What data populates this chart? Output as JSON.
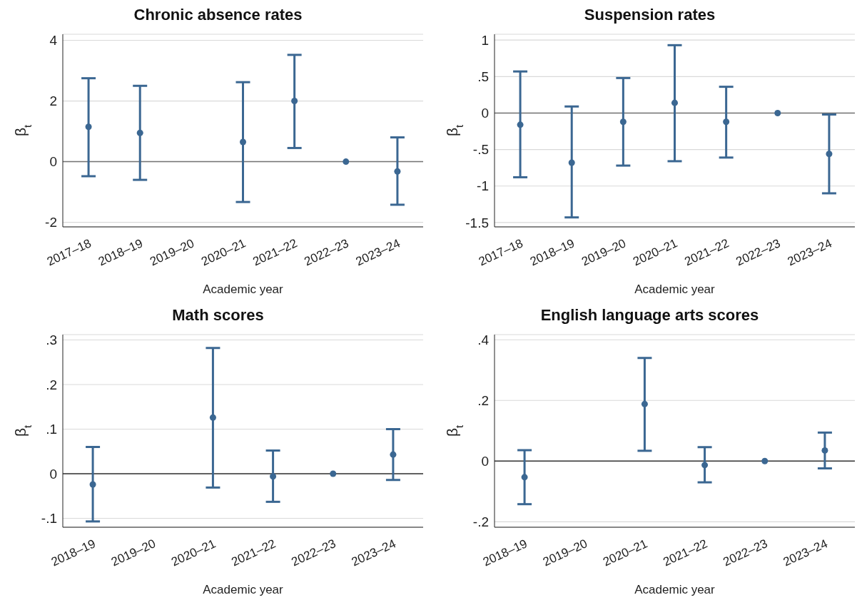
{
  "chart_data": [
    {
      "type": "scatter",
      "title": "Chronic absence rates",
      "xlabel": "Academic year",
      "ylabel": "β$_{t}$",
      "categories": [
        "2017–18",
        "2018–19",
        "2019–20",
        "2020–21",
        "2021–22",
        "2022–23",
        "2023–24"
      ],
      "series": [
        {
          "color": "#3b6792",
          "values": [
            1.15,
            0.95,
            null,
            0.65,
            2.0,
            0,
            -0.32
          ],
          "errors": [
            [
              -0.48,
              2.75
            ],
            [
              -0.6,
              2.5
            ],
            null,
            [
              -1.33,
              2.62
            ],
            [
              0.45,
              3.52
            ],
            null,
            [
              -1.42,
              0.8
            ]
          ]
        }
      ],
      "ylim": [
        -2.15,
        4.2
      ],
      "yticks": [
        -2,
        0,
        2,
        4
      ],
      "grid": "y",
      "marker": "circle",
      "ref_lines": [
        {
          "axis": "y",
          "value": 0,
          "color": "#737373"
        }
      ]
    },
    {
      "type": "scatter",
      "title": "Suspension rates",
      "xlabel": "Academic year",
      "ylabel": "β$_{t}$",
      "categories": [
        "2017–18",
        "2018–19",
        "2019–20",
        "2020–21",
        "2021–22",
        "2022–23",
        "2023–24"
      ],
      "series": [
        {
          "color": "#3b6792",
          "values": [
            -0.16,
            -0.68,
            -0.12,
            0.14,
            -0.12,
            0,
            -0.56
          ],
          "errors": [
            [
              -0.88,
              0.57
            ],
            [
              -1.43,
              0.09
            ],
            [
              -0.72,
              0.48
            ],
            [
              -0.66,
              0.93
            ],
            [
              -0.61,
              0.36
            ],
            null,
            [
              -1.1,
              -0.02
            ]
          ]
        }
      ],
      "ylim": [
        -1.56,
        1.08
      ],
      "yticks": [
        {
          "value": -1.5,
          "label": "-1.5"
        },
        -1,
        {
          "value": -0.5,
          "label": "-.5"
        },
        0,
        {
          "value": 0.5,
          "label": ".5"
        },
        1
      ],
      "grid": "y",
      "marker": "circle",
      "ref_lines": [
        {
          "axis": "y",
          "value": 0,
          "color": "#737373"
        }
      ]
    },
    {
      "type": "scatter",
      "title": "Math scores",
      "xlabel": "Academic year",
      "ylabel": "β$_{t}$",
      "categories": [
        "2018–19",
        "2019–20",
        "2020–21",
        "2021–22",
        "2022–23",
        "2023–24"
      ],
      "series": [
        {
          "color": "#3b6792",
          "values": [
            -0.024,
            null,
            0.126,
            -0.006,
            0,
            0.043
          ],
          "errors": [
            [
              -0.107,
              0.06
            ],
            null,
            [
              -0.031,
              0.282
            ],
            [
              -0.063,
              0.052
            ],
            null,
            [
              -0.014,
              0.1
            ]
          ]
        }
      ],
      "ylim": [
        -0.12,
        0.312
      ],
      "yticks": [
        {
          "value": -0.1,
          "label": "-.1"
        },
        0,
        {
          "value": 0.1,
          "label": ".1"
        },
        {
          "value": 0.2,
          "label": ".2"
        },
        {
          "value": 0.3,
          "label": ".3"
        }
      ],
      "grid": "y",
      "marker": "circle",
      "ref_lines": [
        {
          "axis": "y",
          "value": 0,
          "color": "#333333"
        }
      ]
    },
    {
      "type": "scatter",
      "title": "English language arts scores",
      "xlabel": "Academic year",
      "ylabel": "β$_{t}$",
      "categories": [
        "2018–19",
        "2019–20",
        "2020–21",
        "2021–22",
        "2022–23",
        "2023–24"
      ],
      "series": [
        {
          "color": "#3b6792",
          "values": [
            -0.053,
            null,
            0.188,
            -0.013,
            0,
            0.035
          ],
          "errors": [
            [
              -0.142,
              0.036
            ],
            null,
            [
              0.034,
              0.34
            ],
            [
              -0.07,
              0.046
            ],
            null,
            [
              -0.024,
              0.094
            ]
          ]
        }
      ],
      "ylim": [
        -0.218,
        0.417
      ],
      "yticks": [
        {
          "value": -0.2,
          "label": "-.2"
        },
        0,
        {
          "value": 0.2,
          "label": ".2"
        },
        {
          "value": 0.4,
          "label": ".4"
        }
      ],
      "grid": "y",
      "marker": "circle",
      "ref_lines": [
        {
          "axis": "y",
          "value": 0,
          "color": "#333333"
        }
      ]
    }
  ]
}
